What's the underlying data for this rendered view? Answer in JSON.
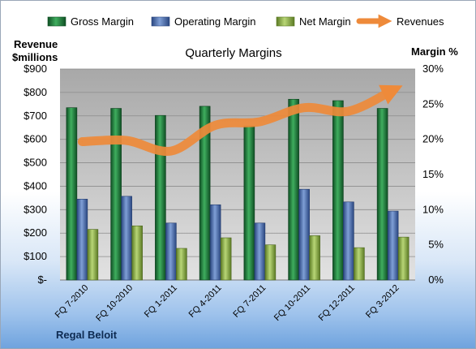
{
  "chart_data": {
    "type": "bar",
    "title": "Quarterly Margins",
    "footer": "Regal Beloit",
    "categories": [
      "FQ 7-2010",
      "FQ 10-2010",
      "FQ 1-2011",
      "FQ 4-2011",
      "FQ 7-2011",
      "FQ 10-2011",
      "FQ 12-2011",
      "FQ 3-2012"
    ],
    "left_axis": {
      "label_line1": "Revenue",
      "label_line2": "$millions",
      "ylim": [
        0,
        900
      ],
      "ticks": [
        "$-",
        "$100",
        "$200",
        "$300",
        "$400",
        "$500",
        "$600",
        "$700",
        "$800",
        "$900"
      ]
    },
    "right_axis": {
      "label": "Margin  %",
      "ylim": [
        0,
        30
      ],
      "ticks": [
        "0%",
        "5%",
        "10%",
        "15%",
        "20%",
        "25%",
        "30%"
      ]
    },
    "series": [
      {
        "name": "Gross Margin",
        "type": "bar",
        "axis": "right",
        "color": "#1e7a3c",
        "values": [
          24.5,
          24.4,
          23.4,
          24.7,
          21.9,
          25.7,
          25.5,
          24.4
        ]
      },
      {
        "name": "Operating Margin",
        "type": "bar",
        "axis": "right",
        "color": "#4a6fb0",
        "values": [
          11.5,
          11.9,
          8.1,
          10.7,
          8.1,
          12.9,
          11.1,
          9.8
        ]
      },
      {
        "name": "Net Margin",
        "type": "bar",
        "axis": "right",
        "color": "#8fb24a",
        "values": [
          7.2,
          7.7,
          4.5,
          6.0,
          5.0,
          6.3,
          4.6,
          6.1
        ]
      },
      {
        "name": "Revenues",
        "type": "line",
        "axis": "left",
        "color": "#ee8a3a",
        "values": [
          590,
          595,
          550,
          660,
          675,
          735,
          720,
          810
        ]
      }
    ],
    "grid": true,
    "legend": "top"
  }
}
